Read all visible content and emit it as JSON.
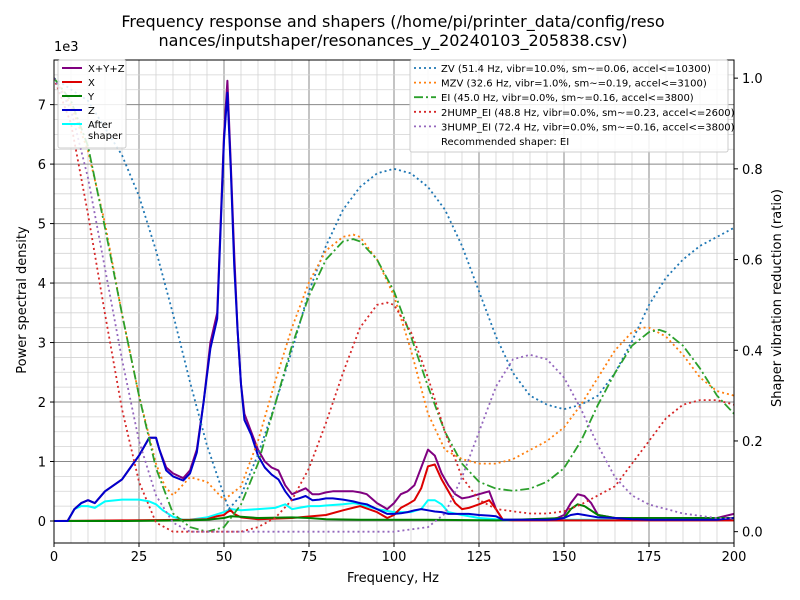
{
  "chart_data": {
    "type": "line",
    "title": [
      "Frequency response and shapers (/home/pi/printer_data/config/reso",
      "nances/inputshaper/resonances_y_20240103_205838.csv)"
    ],
    "xlabel": "Frequency, Hz",
    "ylabel": "Power spectral density",
    "y2label": "Shaper vibration reduction (ratio)",
    "y_offset_text": "1e3",
    "xlim": [
      0,
      200
    ],
    "ylim": [
      -0.37,
      7.75
    ],
    "y2lim": [
      -0.025,
      1.04
    ],
    "x_ticks": [
      0,
      25,
      50,
      75,
      100,
      125,
      150,
      175,
      200
    ],
    "y_ticks": [
      0,
      1,
      2,
      3,
      4,
      5,
      6,
      7
    ],
    "y2_ticks": [
      0.0,
      0.2,
      0.4,
      0.6,
      0.8,
      1.0
    ],
    "x_tick_labels": [
      "0",
      "25",
      "50",
      "75",
      "100",
      "125",
      "150",
      "175",
      "200"
    ],
    "y_tick_labels": [
      "0",
      "1",
      "2",
      "3",
      "4",
      "5",
      "6",
      "7"
    ],
    "y2_tick_labels": [
      "0.0",
      "0.2",
      "0.4",
      "0.6",
      "0.8",
      "1.0"
    ],
    "grid": true,
    "psd_legend_position": "upper-left",
    "shaper_legend_position": "upper-right",
    "psd_series": [
      {
        "name": "X+Y+Z",
        "color": "#800080",
        "x": [
          0,
          4,
          6,
          8,
          10,
          12,
          15,
          20,
          25,
          28,
          30,
          31,
          33,
          35,
          38,
          40,
          42,
          44,
          46,
          48,
          50,
          51,
          52,
          53,
          54,
          55,
          56,
          58,
          60,
          62,
          64,
          66,
          68,
          70,
          72,
          74,
          76,
          78,
          80,
          82,
          85,
          88,
          90,
          92,
          95,
          98,
          100,
          102,
          104,
          106,
          108,
          110,
          112,
          114,
          116,
          118,
          120,
          122,
          125,
          128,
          130,
          132,
          135,
          140,
          145,
          148,
          150,
          152,
          154,
          156,
          158,
          160,
          165,
          170,
          175,
          180,
          185,
          190,
          195,
          200
        ],
        "y": [
          0,
          0,
          0.2,
          0.3,
          0.35,
          0.3,
          0.5,
          0.7,
          1.1,
          1.4,
          1.4,
          1.2,
          0.9,
          0.8,
          0.72,
          0.85,
          1.2,
          2.0,
          3.0,
          3.5,
          6.5,
          7.4,
          6.0,
          4.5,
          3.2,
          2.3,
          1.8,
          1.5,
          1.2,
          1.0,
          0.9,
          0.85,
          0.6,
          0.45,
          0.5,
          0.55,
          0.45,
          0.45,
          0.48,
          0.5,
          0.5,
          0.5,
          0.48,
          0.45,
          0.3,
          0.2,
          0.3,
          0.45,
          0.5,
          0.6,
          0.9,
          1.2,
          1.1,
          0.8,
          0.6,
          0.45,
          0.38,
          0.4,
          0.45,
          0.5,
          0.2,
          0.02,
          0.02,
          0.02,
          0.02,
          0.05,
          0.1,
          0.3,
          0.45,
          0.42,
          0.3,
          0.1,
          0.05,
          0.03,
          0.02,
          0.02,
          0.05,
          0.05,
          0.05,
          0.12
        ]
      },
      {
        "name": "X",
        "color": "#dd0000",
        "x": [
          0,
          20,
          40,
          45,
          48,
          50,
          51,
          52,
          53,
          55,
          60,
          70,
          80,
          85,
          90,
          95,
          98,
          100,
          102,
          104,
          106,
          108,
          110,
          112,
          114,
          116,
          118,
          120,
          122,
          125,
          128,
          130,
          132,
          135,
          150,
          160,
          200
        ],
        "y": [
          0,
          0.01,
          0.02,
          0.03,
          0.08,
          0.1,
          0.15,
          0.18,
          0.12,
          0.06,
          0.03,
          0.05,
          0.1,
          0.18,
          0.25,
          0.15,
          0.05,
          0.1,
          0.22,
          0.28,
          0.35,
          0.55,
          0.92,
          0.95,
          0.7,
          0.5,
          0.3,
          0.2,
          0.22,
          0.28,
          0.35,
          0.2,
          0.02,
          0.01,
          0.01,
          0.01,
          0.01
        ]
      },
      {
        "name": "Y",
        "color": "#008000",
        "x": [
          0,
          20,
          40,
          45,
          50,
          52,
          55,
          60,
          70,
          75,
          80,
          90,
          100,
          110,
          130,
          150,
          152,
          154,
          156,
          160,
          165,
          200
        ],
        "y": [
          0,
          0,
          0.01,
          0.02,
          0.05,
          0.08,
          0.07,
          0.05,
          0.06,
          0.05,
          0.03,
          0.02,
          0.02,
          0.02,
          0.01,
          0.05,
          0.2,
          0.28,
          0.25,
          0.1,
          0.05,
          0.05
        ]
      },
      {
        "name": "Z",
        "color": "#0000cc",
        "x": [
          0,
          4,
          6,
          8,
          10,
          12,
          15,
          20,
          25,
          28,
          30,
          31,
          33,
          35,
          38,
          40,
          42,
          44,
          46,
          48,
          50,
          51,
          52,
          53,
          54,
          55,
          56,
          58,
          60,
          62,
          64,
          66,
          68,
          70,
          72,
          74,
          76,
          78,
          80,
          82,
          85,
          88,
          90,
          92,
          95,
          98,
          100,
          102,
          104,
          106,
          108,
          110,
          112,
          114,
          116,
          118,
          120,
          122,
          125,
          128,
          130,
          132,
          135,
          140,
          145,
          148,
          150,
          152,
          154,
          156,
          158,
          160,
          165,
          170,
          175,
          180,
          185,
          190,
          195,
          200
        ],
        "y": [
          0,
          0,
          0.2,
          0.3,
          0.35,
          0.3,
          0.5,
          0.7,
          1.1,
          1.4,
          1.4,
          1.2,
          0.85,
          0.75,
          0.68,
          0.8,
          1.15,
          2.0,
          2.9,
          3.4,
          6.4,
          7.2,
          5.9,
          4.3,
          3.2,
          2.3,
          1.7,
          1.45,
          1.1,
          0.9,
          0.78,
          0.7,
          0.5,
          0.35,
          0.38,
          0.42,
          0.35,
          0.36,
          0.38,
          0.38,
          0.36,
          0.33,
          0.3,
          0.28,
          0.2,
          0.12,
          0.12,
          0.13,
          0.15,
          0.18,
          0.2,
          0.18,
          0.16,
          0.15,
          0.12,
          0.12,
          0.12,
          0.12,
          0.1,
          0.09,
          0.08,
          0.02,
          0.02,
          0.02,
          0.02,
          0.03,
          0.05,
          0.1,
          0.12,
          0.1,
          0.08,
          0.06,
          0.05,
          0.03,
          0.02,
          0.02,
          0.02,
          0.02,
          0.02,
          0.05
        ]
      },
      {
        "name": "After\nshaper",
        "color": "#00ffff",
        "x": [
          0,
          4,
          6,
          8,
          10,
          12,
          15,
          20,
          25,
          28,
          30,
          32,
          35,
          38,
          40,
          45,
          50,
          52,
          55,
          60,
          65,
          68,
          70,
          72,
          75,
          78,
          80,
          85,
          88,
          90,
          95,
          100,
          105,
          108,
          110,
          112,
          114,
          116,
          120,
          125,
          130,
          135,
          150,
          200
        ],
        "y": [
          0,
          0,
          0.2,
          0.25,
          0.25,
          0.22,
          0.33,
          0.36,
          0.36,
          0.33,
          0.28,
          0.18,
          0.07,
          0.02,
          0.02,
          0.06,
          0.15,
          0.2,
          0.18,
          0.2,
          0.22,
          0.28,
          0.2,
          0.22,
          0.25,
          0.25,
          0.26,
          0.28,
          0.3,
          0.28,
          0.2,
          0.15,
          0.15,
          0.2,
          0.35,
          0.35,
          0.28,
          0.15,
          0.1,
          0.05,
          0.03,
          0.02,
          0.02,
          0.02
        ]
      }
    ],
    "shaper_series": [
      {
        "name": "ZV (51.4 Hz, vibr=10.0%, sm~=0.06, accel<=10300)",
        "color": "#1f77b4",
        "dash": "dotted",
        "x": [
          0,
          10,
          20,
          25,
          30,
          35,
          40,
          45,
          50,
          51.4,
          55,
          60,
          65,
          70,
          75,
          80,
          85,
          90,
          95,
          100,
          105,
          110,
          115,
          120,
          125,
          130,
          135,
          140,
          145,
          150,
          155,
          160,
          165,
          170,
          175,
          180,
          185,
          190,
          195,
          200
        ],
        "y": [
          1.0,
          0.95,
          0.83,
          0.74,
          0.62,
          0.48,
          0.33,
          0.19,
          0.08,
          0.05,
          0.08,
          0.17,
          0.28,
          0.4,
          0.53,
          0.63,
          0.71,
          0.76,
          0.79,
          0.8,
          0.79,
          0.76,
          0.71,
          0.63,
          0.53,
          0.43,
          0.35,
          0.3,
          0.28,
          0.27,
          0.28,
          0.3,
          0.35,
          0.42,
          0.5,
          0.56,
          0.6,
          0.63,
          0.65,
          0.67
        ]
      },
      {
        "name": "MZV (32.6 Hz, vibr=1.0%, sm~=0.19, accel<=3100)",
        "color": "#ff7f0e",
        "dash": "dotted",
        "x": [
          0,
          5,
          10,
          15,
          20,
          25,
          30,
          32.6,
          35,
          40,
          45,
          50,
          55,
          60,
          65,
          70,
          75,
          80,
          85,
          88,
          90,
          95,
          100,
          105,
          110,
          115,
          120,
          125,
          130,
          135,
          140,
          145,
          150,
          155,
          160,
          165,
          170,
          173,
          175,
          180,
          185,
          190,
          195,
          200
        ],
        "y": [
          1.0,
          0.94,
          0.84,
          0.68,
          0.48,
          0.3,
          0.15,
          0.1,
          0.08,
          0.12,
          0.11,
          0.07,
          0.1,
          0.2,
          0.33,
          0.45,
          0.55,
          0.62,
          0.65,
          0.655,
          0.65,
          0.6,
          0.52,
          0.4,
          0.26,
          0.18,
          0.16,
          0.15,
          0.15,
          0.16,
          0.18,
          0.2,
          0.23,
          0.28,
          0.34,
          0.4,
          0.44,
          0.45,
          0.45,
          0.43,
          0.39,
          0.34,
          0.31,
          0.3
        ]
      },
      {
        "name": "EI (45.0 Hz, vibr=0.0%, sm~=0.16, accel<=3800)",
        "color": "#2ca02c",
        "dash": "dashdot",
        "x": [
          0,
          5,
          10,
          15,
          20,
          25,
          30,
          35,
          40,
          45,
          50,
          55,
          60,
          65,
          70,
          75,
          80,
          85,
          88,
          90,
          95,
          100,
          105,
          110,
          115,
          120,
          125,
          130,
          135,
          140,
          145,
          150,
          155,
          160,
          165,
          170,
          175,
          178,
          180,
          185,
          190,
          195,
          200
        ],
        "y": [
          1.0,
          0.95,
          0.85,
          0.67,
          0.48,
          0.3,
          0.14,
          0.04,
          0.01,
          0.0,
          0.01,
          0.06,
          0.15,
          0.28,
          0.41,
          0.52,
          0.6,
          0.64,
          0.645,
          0.64,
          0.6,
          0.53,
          0.43,
          0.32,
          0.22,
          0.15,
          0.11,
          0.095,
          0.09,
          0.095,
          0.11,
          0.14,
          0.2,
          0.28,
          0.35,
          0.41,
          0.44,
          0.445,
          0.44,
          0.41,
          0.36,
          0.3,
          0.26
        ]
      },
      {
        "name": "2HUMP_EI (48.8 Hz, vibr=0.0%, sm~=0.23, accel<=2600)",
        "color": "#d62728",
        "dash": "dotted",
        "x": [
          0,
          5,
          10,
          15,
          20,
          25,
          30,
          35,
          40,
          45,
          50,
          55,
          60,
          65,
          70,
          75,
          80,
          85,
          90,
          95,
          98,
          100,
          105,
          110,
          115,
          120,
          125,
          130,
          135,
          140,
          145,
          150,
          155,
          160,
          165,
          170,
          175,
          180,
          185,
          190,
          195,
          200
        ],
        "y": [
          1.0,
          0.9,
          0.7,
          0.48,
          0.27,
          0.11,
          0.02,
          0.0,
          0.0,
          0.0,
          0.0,
          0.0,
          0.01,
          0.03,
          0.07,
          0.14,
          0.24,
          0.35,
          0.45,
          0.5,
          0.505,
          0.5,
          0.44,
          0.34,
          0.22,
          0.12,
          0.07,
          0.05,
          0.045,
          0.04,
          0.04,
          0.045,
          0.06,
          0.08,
          0.1,
          0.15,
          0.2,
          0.25,
          0.28,
          0.29,
          0.29,
          0.28
        ]
      },
      {
        "name": "3HUMP_EI (72.4 Hz, vibr=0.0%, sm~=0.16, accel<=3800)",
        "color": "#9467bd",
        "dash": "dotted",
        "x": [
          0,
          5,
          10,
          15,
          20,
          25,
          30,
          35,
          40,
          45,
          50,
          60,
          70,
          80,
          90,
          100,
          110,
          115,
          120,
          125,
          130,
          135,
          140,
          145,
          150,
          155,
          160,
          165,
          170,
          175,
          180,
          185,
          190,
          195,
          200
        ],
        "y": [
          1.0,
          0.93,
          0.78,
          0.58,
          0.38,
          0.2,
          0.08,
          0.02,
          0.0,
          0.0,
          0.0,
          0.0,
          0.0,
          0.0,
          0.0,
          0.0,
          0.01,
          0.04,
          0.12,
          0.22,
          0.32,
          0.38,
          0.39,
          0.38,
          0.34,
          0.27,
          0.19,
          0.12,
          0.08,
          0.06,
          0.05,
          0.04,
          0.035,
          0.03,
          0.03
        ]
      }
    ],
    "recommended_text": "Recommended shaper: EI"
  }
}
